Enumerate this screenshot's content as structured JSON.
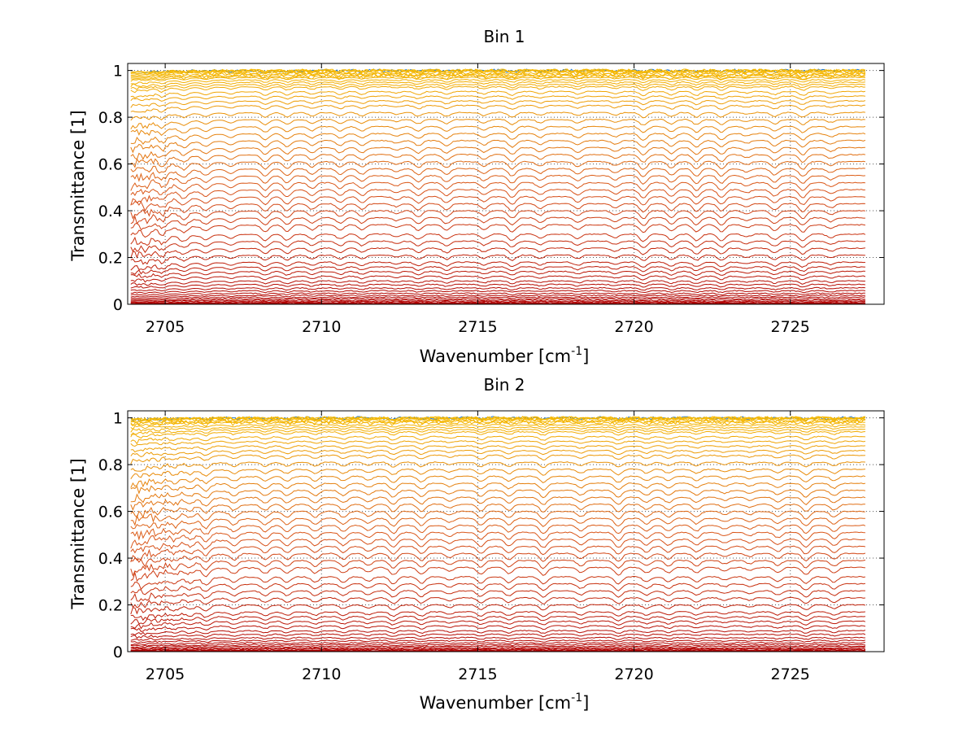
{
  "chart_data": [
    {
      "type": "line",
      "title": "Bin 1",
      "xlabel": "Wavenumber [cm",
      "xlabel_sup": "-1",
      "xlabel_close": "]",
      "ylabel": "Transmittance [1]",
      "xlim": [
        2703.8,
        2728.0
      ],
      "ylim": [
        0,
        1.03
      ],
      "data_xrange": [
        2703.9,
        2727.4
      ],
      "x_ticks": [
        2705,
        2710,
        2715,
        2720,
        2725
      ],
      "y_ticks": [
        0,
        0.2,
        0.4,
        0.6,
        0.8,
        1
      ],
      "y_tick_labels": [
        "0",
        "0.2",
        "0.4",
        "0.6",
        "0.8",
        "1"
      ],
      "grid": true,
      "series_count": 60,
      "series_levels": [
        1.0,
        1.0,
        1.0,
        1.0,
        0.995,
        0.99,
        0.985,
        0.98,
        0.975,
        0.97,
        0.96,
        0.95,
        0.94,
        0.93,
        0.91,
        0.89,
        0.87,
        0.85,
        0.82,
        0.79,
        0.76,
        0.73,
        0.7,
        0.67,
        0.64,
        0.61,
        0.58,
        0.55,
        0.52,
        0.49,
        0.46,
        0.43,
        0.4,
        0.37,
        0.34,
        0.3,
        0.27,
        0.24,
        0.21,
        0.18,
        0.16,
        0.14,
        0.12,
        0.1,
        0.085,
        0.07,
        0.058,
        0.047,
        0.038,
        0.03,
        0.023,
        0.017,
        0.012,
        0.008,
        0.005,
        0.003,
        0.002,
        0.001,
        0.0005,
        0.0
      ],
      "absorption_lines": [
        2704.4,
        2704.9,
        2705.6,
        2706.3,
        2707.1,
        2708.2,
        2708.9,
        2709.7,
        2710.6,
        2711.3,
        2712.4,
        2713.1,
        2714.0,
        2715.2,
        2716.1,
        2717.0,
        2718.2,
        2719.4,
        2720.3,
        2721.2,
        2722.0,
        2722.8,
        2723.6,
        2724.5,
        2725.4,
        2726.3
      ],
      "colors": {
        "low": "#b00000",
        "mid": "#d9541a",
        "high": "#f5b800",
        "top": "#1f77d4"
      }
    },
    {
      "type": "line",
      "title": "Bin 2",
      "xlabel": "Wavenumber [cm",
      "xlabel_sup": "-1",
      "xlabel_close": "]",
      "ylabel": "Transmittance [1]",
      "xlim": [
        2703.8,
        2728.0
      ],
      "ylim": [
        0,
        1.03
      ],
      "data_xrange": [
        2703.9,
        2727.4
      ],
      "x_ticks": [
        2705,
        2710,
        2715,
        2720,
        2725
      ],
      "y_ticks": [
        0,
        0.2,
        0.4,
        0.6,
        0.8,
        1
      ],
      "y_tick_labels": [
        "0",
        "0.2",
        "0.4",
        "0.6",
        "0.8",
        "1"
      ],
      "grid": true,
      "series_count": 60,
      "series_levels": [
        1.0,
        1.0,
        1.0,
        1.0,
        0.995,
        0.99,
        0.985,
        0.98,
        0.97,
        0.96,
        0.95,
        0.94,
        0.92,
        0.9,
        0.88,
        0.86,
        0.84,
        0.81,
        0.78,
        0.75,
        0.72,
        0.69,
        0.66,
        0.63,
        0.6,
        0.57,
        0.54,
        0.51,
        0.48,
        0.45,
        0.42,
        0.39,
        0.36,
        0.32,
        0.29,
        0.26,
        0.23,
        0.2,
        0.17,
        0.15,
        0.13,
        0.11,
        0.09,
        0.075,
        0.06,
        0.048,
        0.038,
        0.03,
        0.023,
        0.017,
        0.012,
        0.008,
        0.005,
        0.003,
        0.002,
        0.001,
        0.0005,
        0.0002,
        0.0001,
        0.0
      ],
      "absorption_lines": [
        2704.3,
        2704.8,
        2705.3,
        2705.8,
        2706.3,
        2707.2,
        2708.2,
        2708.9,
        2709.8,
        2710.7,
        2711.5,
        2712.3,
        2713.2,
        2714.1,
        2715.1,
        2716.0,
        2717.1,
        2718.3,
        2719.5,
        2720.4,
        2721.1,
        2722.0,
        2722.9,
        2723.7,
        2724.6,
        2725.5,
        2726.4
      ],
      "colors": {
        "low": "#b00000",
        "mid": "#d9541a",
        "high": "#f5b800",
        "top": "#1f77d4"
      }
    }
  ]
}
